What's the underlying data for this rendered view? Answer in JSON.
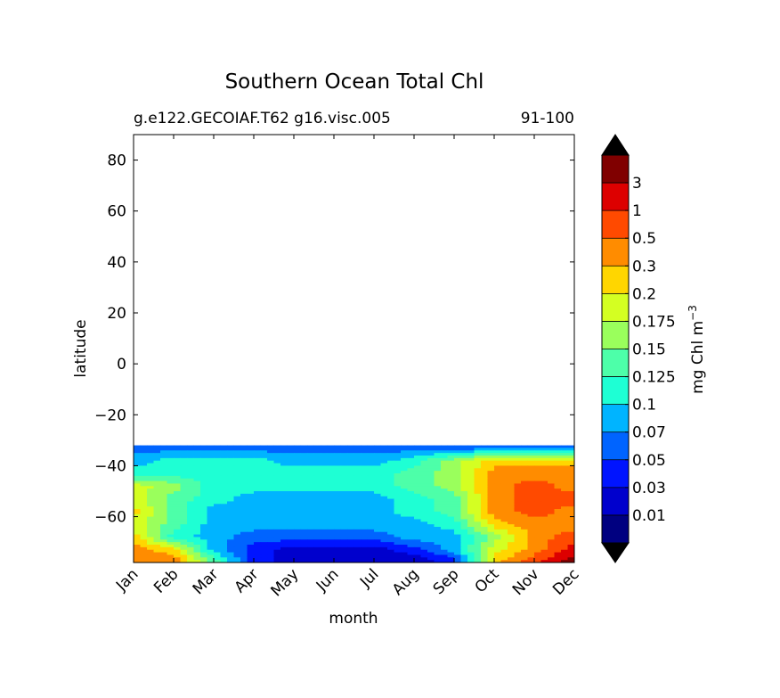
{
  "chart_data": {
    "type": "contour",
    "title": "Southern Ocean Total Chl",
    "subtitle_left": "g.e122.GECOIAF.T62 g16.visc.005",
    "subtitle_right": "91-100",
    "xlabel": "month",
    "ylabel": "latitude",
    "x_ticks": [
      "Jan",
      "Feb",
      "Mar",
      "Apr",
      "May",
      "Jun",
      "Jul",
      "Aug",
      "Sep",
      "Oct",
      "Nov",
      "Dec"
    ],
    "y_ticks": [
      80,
      60,
      40,
      20,
      0,
      -20,
      -40,
      -60
    ],
    "ylim": [
      -78,
      90
    ],
    "data_lat_range": [
      -78,
      -32
    ],
    "colorbar": {
      "label": "mg Chl m",
      "label_sup": "−3",
      "tick_labels": [
        "0.01",
        "0.03",
        "0.05",
        "0.07",
        "0.1",
        "0.125",
        "0.15",
        "0.175",
        "0.2",
        "0.3",
        "0.5",
        "1",
        "3"
      ],
      "colors": [
        "#000080",
        "#0000cd",
        "#0014ff",
        "#0064ff",
        "#00b4ff",
        "#1effd4",
        "#4dffa9",
        "#9aff5c",
        "#d4ff22",
        "#ffd600",
        "#ff8c00",
        "#ff4a00",
        "#dd0000",
        "#800000"
      ],
      "under_color": "#000000",
      "over_color": "#000000"
    },
    "field_latitudes": [
      -33,
      -38,
      -43,
      -48,
      -53,
      -58,
      -63,
      -68,
      -73,
      -77
    ],
    "field_levels": [
      [
        3,
        3,
        3,
        3,
        3,
        3,
        3,
        3,
        3,
        3,
        3,
        3
      ],
      [
        4,
        5,
        5,
        5,
        4,
        4,
        4,
        5,
        7,
        9,
        9,
        9
      ],
      [
        5,
        5,
        5,
        5,
        5,
        5,
        5,
        6,
        7,
        10,
        10,
        10
      ],
      [
        8,
        7,
        5,
        5,
        5,
        5,
        5,
        6,
        7,
        10,
        11,
        10
      ],
      [
        8,
        6,
        5,
        4,
        4,
        4,
        4,
        5,
        6,
        10,
        11,
        11
      ],
      [
        9,
        6,
        4,
        4,
        4,
        4,
        4,
        5,
        6,
        10,
        11,
        10
      ],
      [
        8,
        6,
        4,
        4,
        4,
        4,
        4,
        4,
        5,
        9,
        10,
        10
      ],
      [
        9,
        5,
        4,
        3,
        3,
        3,
        3,
        4,
        4,
        7,
        10,
        11
      ],
      [
        10,
        9,
        4,
        2,
        1,
        1,
        1,
        2,
        4,
        8,
        10,
        12
      ],
      [
        10,
        10,
        6,
        2,
        1,
        1,
        1,
        1,
        2,
        9,
        11,
        13
      ]
    ]
  }
}
